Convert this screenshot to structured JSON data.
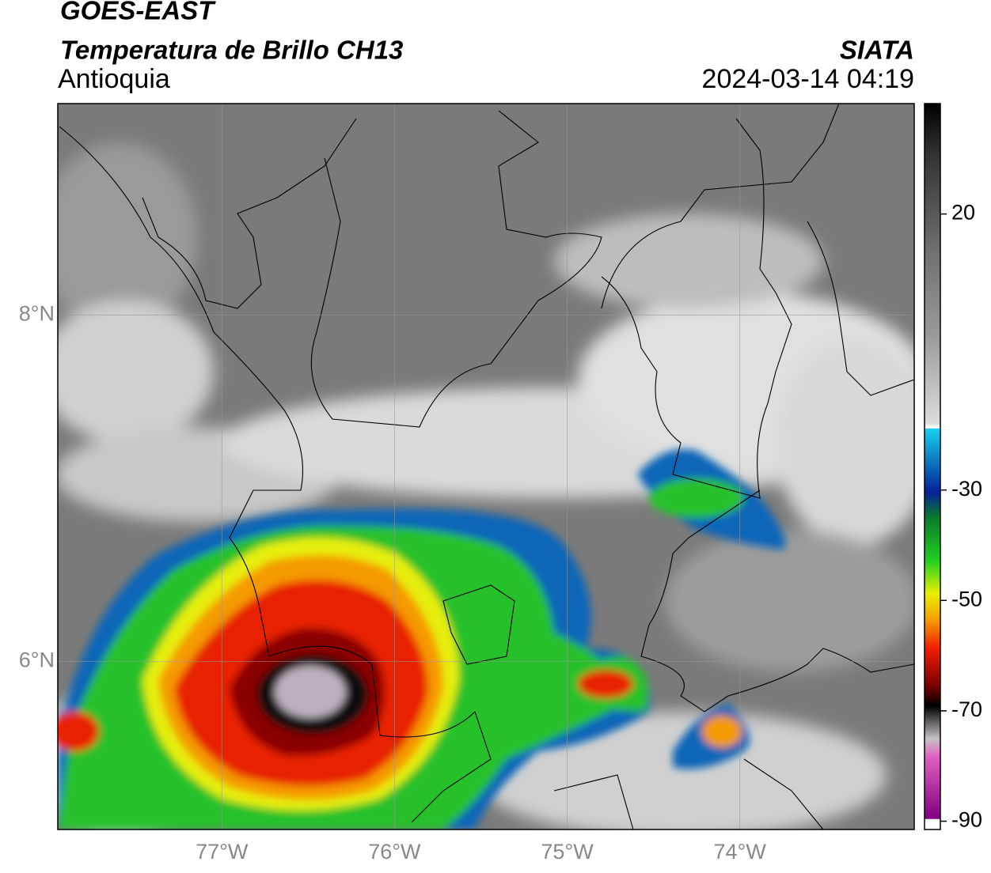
{
  "header": {
    "title": "GOES-EAST",
    "subtitle": "Temperatura de Brillo CH13",
    "region": "Antioquia",
    "source": "SIATA",
    "timestamp": "2024-03-14 04:19"
  },
  "map": {
    "latlim": [
      5.03,
      9.22
    ],
    "lonlim": [
      -77.95,
      -72.99
    ],
    "lat_ticks": [
      {
        "value": 8,
        "label": "8°N"
      },
      {
        "value": 6,
        "label": "6°N"
      }
    ],
    "lon_ticks": [
      {
        "value": -77,
        "label": "77°W"
      },
      {
        "value": -76,
        "label": "76°W"
      },
      {
        "value": -75,
        "label": "75°W"
      },
      {
        "value": -74,
        "label": "74°W"
      }
    ],
    "grid": true
  },
  "colorbar": {
    "lim": [
      -91.5,
      40
    ],
    "ticks": [
      20,
      -30,
      -50,
      -70,
      -90
    ]
  }
}
